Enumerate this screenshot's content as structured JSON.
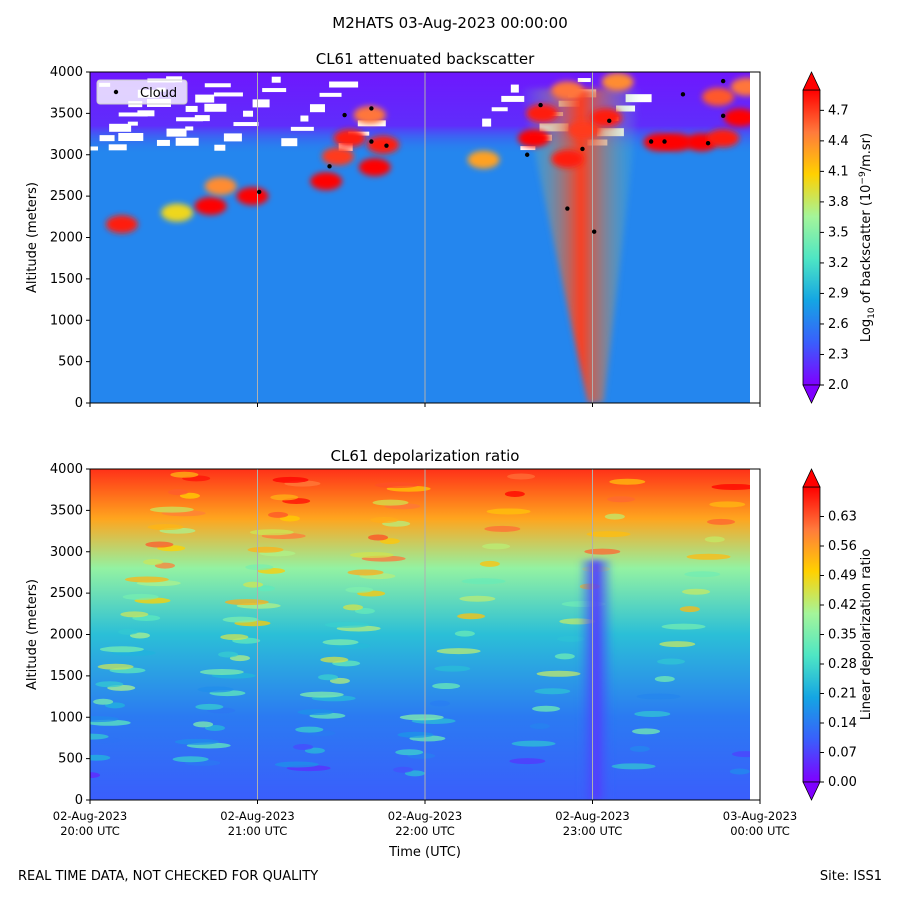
{
  "suptitle": "M2HATS 03-Aug-2023 00:00:00",
  "footer": {
    "left": "REAL TIME DATA, NOT CHECKED FOR QUALITY",
    "right": "Site: ISS1"
  },
  "colors": {
    "colormap": [
      "#7f00ff",
      "#3a5efc",
      "#14a5e3",
      "#4ee6c4",
      "#a4f59a",
      "#ffd100",
      "#ff7a3c",
      "#ff0000"
    ],
    "cloud_marker": "#000000",
    "gridline": "#b0b0b0"
  },
  "chart_data": [
    {
      "type": "heatmap",
      "title": "CL61 attenuated backscatter",
      "xlabel": "",
      "ylabel": "Altitude (meters)",
      "xlim": [
        0,
        4
      ],
      "ylim": [
        0,
        4000
      ],
      "x_ticks": [
        {
          "value": 0,
          "label": [
            "02-Aug-2023",
            "20:00 UTC"
          ]
        },
        {
          "value": 1,
          "label": [
            "02-Aug-2023",
            "21:00 UTC"
          ]
        },
        {
          "value": 2,
          "label": [
            "02-Aug-2023",
            "22:00 UTC"
          ]
        },
        {
          "value": 3,
          "label": [
            "02-Aug-2023",
            "23:00 UTC"
          ]
        },
        {
          "value": 4,
          "label": [
            "03-Aug-2023",
            "00:00 UTC"
          ]
        }
      ],
      "x_tick_labels_shown": false,
      "y_ticks": [
        0,
        500,
        1000,
        1500,
        2000,
        2500,
        3000,
        3500,
        4000
      ],
      "grid": "vertical lines at hour ticks",
      "background_value": 2.65,
      "colorbar": {
        "label": "Log10 of backscatter (10^-9/m.sr)",
        "label_parts": {
          "main": "Log",
          "sub": "10",
          "mid": " of backscatter (10",
          "sup": "−9",
          "end": "/m.sr)"
        },
        "range": [
          2.0,
          4.9
        ],
        "ticks": [
          "2.0",
          "2.3",
          "2.6",
          "2.9",
          "3.2",
          "3.5",
          "3.8",
          "4.1",
          "4.4",
          "4.7"
        ]
      },
      "legend": {
        "entries": [
          "Cloud"
        ],
        "position": "upper-left"
      },
      "features": [
        {
          "t": 0.19,
          "alt": 2160,
          "value": 4.8
        },
        {
          "t": 0.52,
          "alt": 2300,
          "value": 4.0
        },
        {
          "t": 0.72,
          "alt": 2380,
          "value": 4.9
        },
        {
          "t": 0.78,
          "alt": 2620,
          "value": 4.4
        },
        {
          "t": 0.97,
          "alt": 2500,
          "value": 4.9
        },
        {
          "t": 1.41,
          "alt": 2680,
          "value": 4.9
        },
        {
          "t": 1.48,
          "alt": 2980,
          "value": 4.7
        },
        {
          "t": 1.55,
          "alt": 3200,
          "value": 4.8
        },
        {
          "t": 1.7,
          "alt": 2850,
          "value": 4.9
        },
        {
          "t": 1.75,
          "alt": 3120,
          "value": 4.8
        },
        {
          "t": 1.67,
          "alt": 3480,
          "value": 4.5
        },
        {
          "t": 2.85,
          "alt": 2950,
          "value": 4.8
        },
        {
          "t": 2.35,
          "alt": 2940,
          "value": 4.3
        },
        {
          "t": 2.65,
          "alt": 3200,
          "value": 4.9
        },
        {
          "t": 2.7,
          "alt": 3500,
          "value": 4.8
        },
        {
          "t": 2.85,
          "alt": 3780,
          "value": 4.5
        },
        {
          "t": 2.95,
          "alt": 3300,
          "value": 4.7
        },
        {
          "t": 3.08,
          "alt": 3450,
          "value": 4.8
        },
        {
          "t": 3.15,
          "alt": 3880,
          "value": 4.4
        },
        {
          "t": 3.4,
          "alt": 3150,
          "value": 4.9
        },
        {
          "t": 3.5,
          "alt": 3150,
          "value": 4.9
        },
        {
          "t": 3.65,
          "alt": 3150,
          "value": 4.9
        },
        {
          "t": 3.75,
          "alt": 3700,
          "value": 4.6
        },
        {
          "t": 3.78,
          "alt": 3200,
          "value": 4.8
        },
        {
          "t": 3.88,
          "alt": 3450,
          "value": 4.9
        },
        {
          "t": 3.92,
          "alt": 3820,
          "value": 4.5
        }
      ],
      "plume": {
        "t": 3.02,
        "alt_bottom": 0,
        "alt_top": 3800,
        "value_core": 4.7,
        "value_edge": 3.3
      },
      "noise_band": {
        "alt_bottom": 3000,
        "alt_top": 4000,
        "value": 2.1
      },
      "series": [
        {
          "name": "Cloud",
          "marker": "dot",
          "points": [
            {
              "t": 1.01,
              "alt": 2550
            },
            {
              "t": 1.43,
              "alt": 2860
            },
            {
              "t": 1.52,
              "alt": 3480
            },
            {
              "t": 1.68,
              "alt": 3160
            },
            {
              "t": 1.68,
              "alt": 3560
            },
            {
              "t": 1.77,
              "alt": 3110
            },
            {
              "t": 2.61,
              "alt": 3000
            },
            {
              "t": 2.69,
              "alt": 3600
            },
            {
              "t": 2.85,
              "alt": 2350
            },
            {
              "t": 2.94,
              "alt": 3070
            },
            {
              "t": 3.01,
              "alt": 2070
            },
            {
              "t": 3.1,
              "alt": 3410
            },
            {
              "t": 3.35,
              "alt": 3160
            },
            {
              "t": 3.43,
              "alt": 3160
            },
            {
              "t": 3.54,
              "alt": 3730
            },
            {
              "t": 3.69,
              "alt": 3140
            },
            {
              "t": 3.78,
              "alt": 3470
            },
            {
              "t": 3.78,
              "alt": 3890
            }
          ]
        }
      ]
    },
    {
      "type": "heatmap",
      "title": "CL61 depolarization ratio",
      "xlabel": "Time (UTC)",
      "ylabel": "Altitude (meters)",
      "xlim": [
        0,
        4
      ],
      "ylim": [
        0,
        4000
      ],
      "x_ticks": [
        {
          "value": 0,
          "label": [
            "02-Aug-2023",
            "20:00 UTC"
          ]
        },
        {
          "value": 1,
          "label": [
            "02-Aug-2023",
            "21:00 UTC"
          ]
        },
        {
          "value": 2,
          "label": [
            "02-Aug-2023",
            "22:00 UTC"
          ]
        },
        {
          "value": 3,
          "label": [
            "02-Aug-2023",
            "23:00 UTC"
          ]
        },
        {
          "value": 4,
          "label": [
            "03-Aug-2023",
            "00:00 UTC"
          ]
        }
      ],
      "x_tick_labels_shown": true,
      "y_ticks": [
        0,
        500,
        1000,
        1500,
        2000,
        2500,
        3000,
        3500,
        4000
      ],
      "grid": "vertical lines at hour ticks",
      "background_value": 0.12,
      "colorbar": {
        "label": "Linear depolarization ratio",
        "range": [
          0.0,
          0.7
        ],
        "ticks": [
          "0.00",
          "0.07",
          "0.14",
          "0.21",
          "0.28",
          "0.35",
          "0.42",
          "0.49",
          "0.56",
          "0.63"
        ]
      },
      "gradient_by_altitude": [
        {
          "alt": 0,
          "value": 0.1
        },
        {
          "alt": 1000,
          "value": 0.14
        },
        {
          "alt": 2000,
          "value": 0.24
        },
        {
          "alt": 2800,
          "value": 0.38
        },
        {
          "alt": 3400,
          "value": 0.55
        },
        {
          "alt": 4000,
          "value": 0.66
        }
      ],
      "plume": {
        "t": 3.02,
        "alt_bottom": 0,
        "alt_top": 2900,
        "value_core": 0.06,
        "value_edge": 0.12
      }
    }
  ]
}
